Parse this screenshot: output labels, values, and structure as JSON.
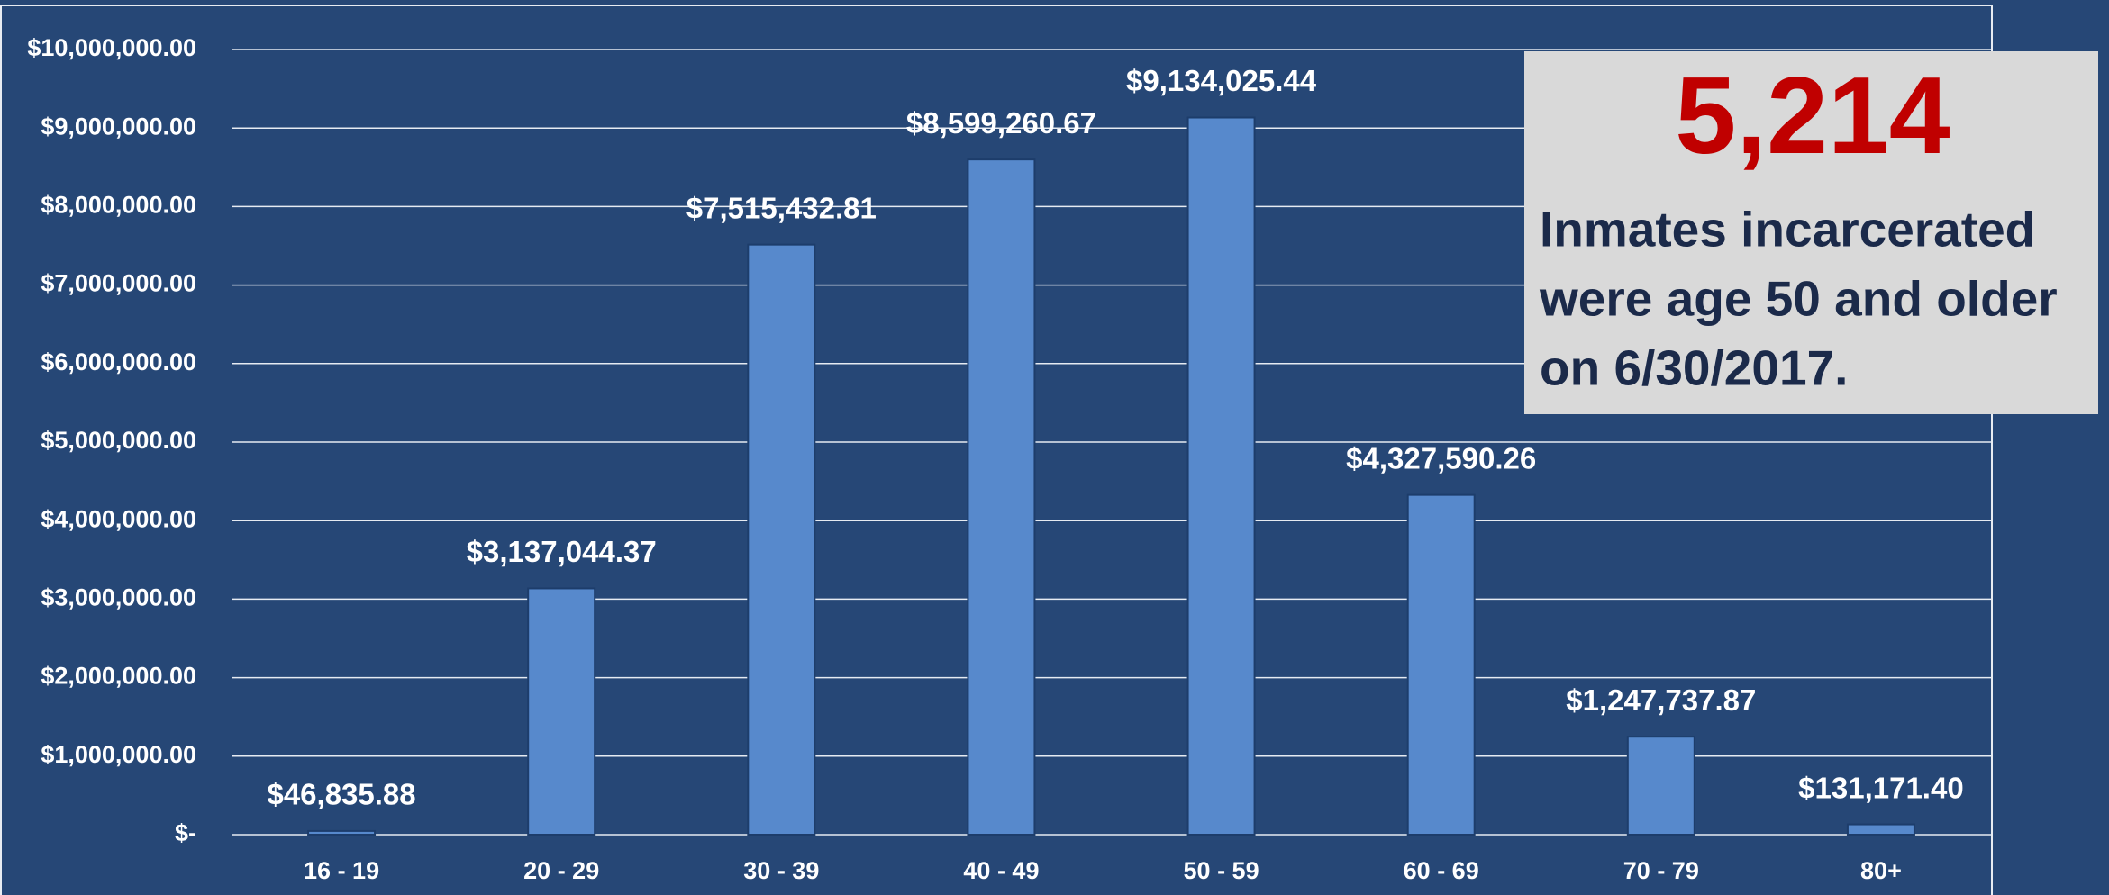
{
  "chart_data": {
    "type": "bar",
    "categories": [
      "16 - 19",
      "20 - 29",
      "30 - 39",
      "40 - 49",
      "50 - 59",
      "60 - 69",
      "70 - 79",
      "80+"
    ],
    "values": [
      46835.88,
      3137044.37,
      7515432.81,
      8599260.67,
      9134025.44,
      4327590.26,
      1247737.87,
      131171.4
    ],
    "value_labels": [
      "$46,835.88",
      "$3,137,044.37",
      "$7,515,432.81",
      "$8,599,260.67",
      "$9,134,025.44",
      "$4,327,590.26",
      "$1,247,737.87",
      "$131,171.40"
    ],
    "color": "#5789cc",
    "ylim": [
      0,
      10000000
    ],
    "yticks": [
      {
        "value": 0,
        "label": "$-"
      },
      {
        "value": 1000000,
        "label": "$1,000,000.00"
      },
      {
        "value": 2000000,
        "label": "$2,000,000.00"
      },
      {
        "value": 3000000,
        "label": "$3,000,000.00"
      },
      {
        "value": 4000000,
        "label": "$4,000,000.00"
      },
      {
        "value": 5000000,
        "label": "$5,000,000.00"
      },
      {
        "value": 6000000,
        "label": "$6,000,000.00"
      },
      {
        "value": 7000000,
        "label": "$7,000,000.00"
      },
      {
        "value": 8000000,
        "label": "$8,000,000.00"
      },
      {
        "value": 9000000,
        "label": "$9,000,000.00"
      },
      {
        "value": 10000000,
        "label": "$10,000,000.00"
      }
    ],
    "grid": true,
    "callout": {
      "number": "5,214",
      "lines": [
        "Inmates incarcerated",
        "were age 50 and older",
        "on 6/30/2017."
      ]
    }
  }
}
